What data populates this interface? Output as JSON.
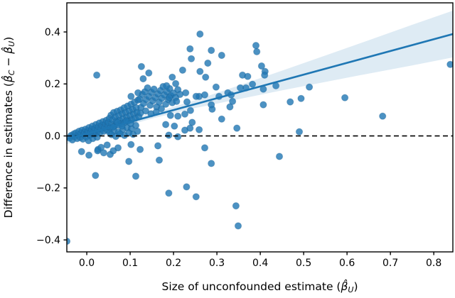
{
  "figure": {
    "background": "#ffffff",
    "xlabel_parts": {
      "pre": "Size of unconfounded estimate (",
      "beta": "β̂",
      "sub": "U",
      "post": ")"
    },
    "ylabel_parts": {
      "pre": "Difference in estimates (",
      "beta1": "β̂",
      "sub1": "C",
      "mid": " − ",
      "beta2": "β̂",
      "sub2": "U",
      "post": ")"
    }
  },
  "chart_data": {
    "type": "scatter",
    "title": "",
    "xlabel": "Size of unconfounded estimate (β̂_U)",
    "ylabel": "Difference in estimates (β̂_C − β̂_U)",
    "xlim": [
      -0.046,
      0.844
    ],
    "ylim": [
      -0.446,
      0.512
    ],
    "xticks": [
      0.0,
      0.1,
      0.2,
      0.3,
      0.4,
      0.5,
      0.6,
      0.7,
      0.8
    ],
    "xtick_labels": [
      "0.0",
      "0.1",
      "0.2",
      "0.3",
      "0.4",
      "0.5",
      "0.6",
      "0.7",
      "0.8"
    ],
    "yticks": [
      -0.4,
      -0.2,
      0.0,
      0.2,
      0.4
    ],
    "ytick_labels": [
      "−0.4",
      "−0.2",
      "0.0",
      "0.2",
      "0.4"
    ],
    "grid": false,
    "legend": null,
    "zero_line": {
      "y": 0.0,
      "style": "dashed",
      "color": "#000000"
    },
    "regression_line": {
      "x0": -0.046,
      "y0": -0.012,
      "x1": 0.844,
      "y1": 0.392,
      "color": "#1f77b4",
      "width": 2.6
    },
    "confidence_band": {
      "x": [
        -0.046,
        0.05,
        0.15,
        0.25,
        0.35,
        0.45,
        0.55,
        0.65,
        0.75,
        0.844
      ],
      "half": [
        0.02,
        0.013,
        0.01,
        0.015,
        0.026,
        0.038,
        0.051,
        0.064,
        0.078,
        0.09
      ],
      "color": "#1f77b4",
      "opacity": 0.15
    },
    "marker": {
      "color": "#1f77b4",
      "opacity": 0.8,
      "edge": "#1b5e93",
      "radius": 4.6
    },
    "points": [
      [
        -0.04,
        -0.008
      ],
      [
        -0.036,
        0.002
      ],
      [
        -0.033,
        -0.015
      ],
      [
        -0.03,
        0.008
      ],
      [
        -0.028,
        -0.003
      ],
      [
        -0.025,
        0.012
      ],
      [
        -0.022,
        -0.01
      ],
      [
        -0.02,
        0.004
      ],
      [
        -0.018,
        0.018
      ],
      [
        -0.015,
        -0.006
      ],
      [
        -0.013,
        0.01
      ],
      [
        -0.011,
        0.022
      ],
      [
        -0.009,
        -0.012
      ],
      [
        -0.007,
        0.006
      ],
      [
        -0.005,
        0.015
      ],
      [
        -0.003,
        0.026
      ],
      [
        -0.001,
        -0.004
      ],
      [
        0.001,
        0.01
      ],
      [
        0.003,
        0.02
      ],
      [
        0.005,
        0.032
      ],
      [
        0.007,
        0.002
      ],
      [
        0.009,
        0.014
      ],
      [
        0.011,
        0.026
      ],
      [
        0.013,
        0.038
      ],
      [
        0.015,
        0.006
      ],
      [
        0.017,
        0.018
      ],
      [
        0.019,
        0.03
      ],
      [
        0.021,
        0.044
      ],
      [
        0.023,
        0.01
      ],
      [
        0.025,
        0.022
      ],
      [
        0.027,
        0.036
      ],
      [
        0.029,
        0.05
      ],
      [
        0.031,
        0.014
      ],
      [
        0.033,
        0.027
      ],
      [
        0.035,
        0.041
      ],
      [
        0.037,
        0.055
      ],
      [
        0.039,
        0.018
      ],
      [
        0.041,
        0.032
      ],
      [
        0.043,
        0.047
      ],
      [
        0.045,
        0.06
      ],
      [
        0.047,
        0.022
      ],
      [
        0.049,
        0.037
      ],
      [
        0.004,
        -0.018
      ],
      [
        0.014,
        -0.01
      ],
      [
        0.024,
        -0.005
      ],
      [
        0.05,
        0.052
      ],
      [
        0.052,
        0.068
      ],
      [
        0.054,
        0.03
      ],
      [
        0.056,
        0.08
      ],
      [
        0.058,
        0.046
      ],
      [
        0.06,
        0.062
      ],
      [
        0.062,
        0.09
      ],
      [
        0.064,
        0.038
      ],
      [
        0.066,
        0.072
      ],
      [
        0.068,
        0.055
      ],
      [
        0.07,
        0.095
      ],
      [
        0.072,
        0.042
      ],
      [
        0.074,
        0.078
      ],
      [
        0.076,
        0.06
      ],
      [
        0.078,
        0.1
      ],
      [
        0.08,
        0.048
      ],
      [
        0.082,
        0.085
      ],
      [
        0.084,
        0.066
      ],
      [
        0.086,
        0.108
      ],
      [
        0.088,
        0.052
      ],
      [
        0.09,
        0.09
      ],
      [
        0.092,
        0.072
      ],
      [
        0.094,
        0.115
      ],
      [
        0.096,
        0.058
      ],
      [
        0.098,
        0.096
      ],
      [
        0.1,
        0.078
      ],
      [
        0.102,
        0.122
      ],
      [
        0.104,
        0.062
      ],
      [
        0.106,
        0.102
      ],
      [
        0.108,
        0.084
      ],
      [
        0.11,
        0.13
      ],
      [
        0.112,
        0.068
      ],
      [
        0.114,
        0.108
      ],
      [
        0.116,
        0.09
      ],
      [
        0.118,
        0.138
      ],
      [
        0.12,
        0.074
      ],
      [
        0.053,
        0.012
      ],
      [
        0.063,
        0.02
      ],
      [
        0.073,
        0.015
      ],
      [
        0.083,
        0.025
      ],
      [
        0.093,
        0.032
      ],
      [
        0.103,
        0.028
      ],
      [
        0.113,
        0.04
      ],
      [
        0.057,
        0.005
      ],
      [
        0.067,
        -0.002
      ],
      [
        0.077,
        0.008
      ],
      [
        0.087,
        0.002
      ],
      [
        0.097,
        0.012
      ],
      [
        0.107,
        0.006
      ],
      [
        0.117,
        0.018
      ],
      [
        0.061,
        0.034
      ],
      [
        0.071,
        0.052
      ],
      [
        0.081,
        0.038
      ],
      [
        0.091,
        0.058
      ],
      [
        0.101,
        0.048
      ],
      [
        0.122,
        0.142
      ],
      [
        0.125,
        0.11
      ],
      [
        0.128,
        0.16
      ],
      [
        0.131,
        0.125
      ],
      [
        0.134,
        0.17
      ],
      [
        0.137,
        0.14
      ],
      [
        0.14,
        0.185
      ],
      [
        0.143,
        0.152
      ],
      [
        0.146,
        0.118
      ],
      [
        0.149,
        0.168
      ],
      [
        0.152,
        0.135
      ],
      [
        0.155,
        0.18
      ],
      [
        0.158,
        0.148
      ],
      [
        0.161,
        0.112
      ],
      [
        0.164,
        0.162
      ],
      [
        0.167,
        0.13
      ],
      [
        0.17,
        0.175
      ],
      [
        0.173,
        0.145
      ],
      [
        0.176,
        0.19
      ],
      [
        0.179,
        0.158
      ],
      [
        0.182,
        0.122
      ],
      [
        0.185,
        0.17
      ],
      [
        0.188,
        0.14
      ],
      [
        0.191,
        0.182
      ],
      [
        0.194,
        0.155
      ],
      [
        0.197,
        0.128
      ],
      [
        0.2,
        0.165
      ],
      [
        0.205,
        0.148
      ],
      [
        0.21,
        0.178
      ],
      [
        0.215,
        0.16
      ],
      [
        0.124,
        0.088
      ],
      [
        0.136,
        0.096
      ],
      [
        0.148,
        0.085
      ],
      [
        0.16,
        0.092
      ],
      [
        0.172,
        0.105
      ],
      [
        0.19,
        0.147
      ],
      [
        0.207,
        0.133
      ],
      [
        0.231,
        0.131
      ],
      [
        0.193,
        0.079
      ],
      [
        0.21,
        0.076
      ],
      [
        0.226,
        0.084
      ],
      [
        0.239,
        0.098
      ],
      [
        0.259,
        0.152
      ],
      [
        0.272,
        0.158
      ],
      [
        0.289,
        0.103
      ],
      [
        0.305,
        0.152
      ],
      [
        0.33,
        0.112
      ],
      [
        0.336,
        0.133
      ],
      [
        0.346,
        0.03
      ],
      [
        0.311,
        0.065
      ],
      [
        0.243,
        0.052
      ],
      [
        0.202,
        0.038
      ],
      [
        0.182,
        0.044
      ],
      [
        0.259,
        0.024
      ],
      [
        0.226,
        0.022
      ],
      [
        0.189,
        0.003
      ],
      [
        0.21,
        -0.003
      ],
      [
        0.272,
        -0.046
      ],
      [
        0.238,
        0.03
      ],
      [
        0.287,
        0.12
      ],
      [
        0.023,
        0.234
      ],
      [
        0.126,
        0.267
      ],
      [
        0.143,
        0.242
      ],
      [
        0.197,
        0.226
      ],
      [
        0.221,
        0.253
      ],
      [
        0.13,
        0.22
      ],
      [
        0.184,
        0.193
      ],
      [
        0.205,
        0.201
      ],
      [
        0.298,
        0.188
      ],
      [
        0.359,
        0.234
      ],
      [
        0.367,
        0.185
      ],
      [
        0.261,
        0.392
      ],
      [
        0.238,
        0.335
      ],
      [
        0.287,
        0.329
      ],
      [
        0.311,
        0.31
      ],
      [
        0.241,
        0.297
      ],
      [
        0.279,
        0.28
      ],
      [
        0.392,
        0.324
      ],
      [
        0.261,
        0.248
      ],
      [
        0.274,
        0.226
      ],
      [
        0.39,
        0.348
      ],
      [
        0.403,
        0.269
      ],
      [
        0.411,
        0.248
      ],
      [
        0.371,
        0.229
      ],
      [
        0.325,
        0.166
      ],
      [
        0.333,
        0.158
      ],
      [
        0.354,
        0.185
      ],
      [
        0.382,
        0.199
      ],
      [
        0.118,
        0.166
      ],
      [
        0.102,
        0.152
      ],
      [
        0.228,
        0.166
      ],
      [
        0.252,
        0.152
      ],
      [
        0.41,
        0.234
      ],
      [
        0.407,
        0.18
      ],
      [
        0.436,
        0.193
      ],
      [
        0.513,
        0.188
      ],
      [
        0.407,
        0.12
      ],
      [
        0.469,
        0.131
      ],
      [
        0.494,
        0.144
      ],
      [
        0.595,
        0.147
      ],
      [
        0.682,
        0.076
      ],
      [
        0.49,
        0.016
      ],
      [
        0.444,
        -0.079
      ],
      [
        0.838,
        0.275
      ],
      [
        -0.046,
        -0.405
      ],
      [
        -0.012,
        -0.06
      ],
      [
        0.005,
        -0.074
      ],
      [
        0.026,
        -0.052
      ],
      [
        0.039,
        -0.065
      ],
      [
        0.054,
        -0.071
      ],
      [
        0.072,
        -0.046
      ],
      [
        0.097,
        -0.098
      ],
      [
        0.025,
        -0.057
      ],
      [
        0.061,
        -0.057
      ],
      [
        0.047,
        -0.035
      ],
      [
        0.102,
        -0.033
      ],
      [
        0.123,
        -0.052
      ],
      [
        0.164,
        -0.038
      ],
      [
        0.167,
        -0.093
      ],
      [
        0.02,
        -0.152
      ],
      [
        0.113,
        -0.155
      ],
      [
        0.189,
        -0.22
      ],
      [
        0.23,
        -0.196
      ],
      [
        0.252,
        -0.234
      ],
      [
        0.344,
        -0.269
      ],
      [
        0.349,
        -0.346
      ],
      [
        0.287,
        -0.106
      ],
      [
        0.033,
        -0.044
      ]
    ]
  }
}
